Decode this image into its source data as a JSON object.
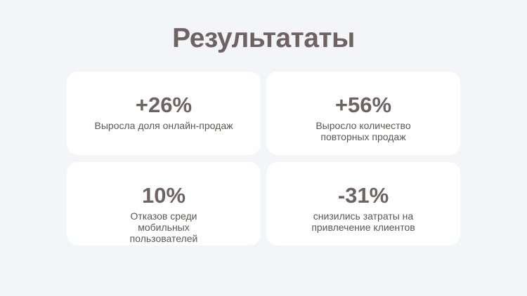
{
  "title": "Результататы",
  "colors": {
    "background": "#f4f5f9",
    "card": "#ffffff",
    "text": "#6e6262"
  },
  "cards": [
    {
      "value": "+26%",
      "description": "Выросла доля онлайн-продаж"
    },
    {
      "value": "+56%",
      "description": "Выросло количество повторных продаж"
    },
    {
      "value": "10%",
      "description": "Отказов среди мобильных пользователей"
    },
    {
      "value": "-31%",
      "description": "снизились затраты на привлечение клиентов"
    }
  ]
}
